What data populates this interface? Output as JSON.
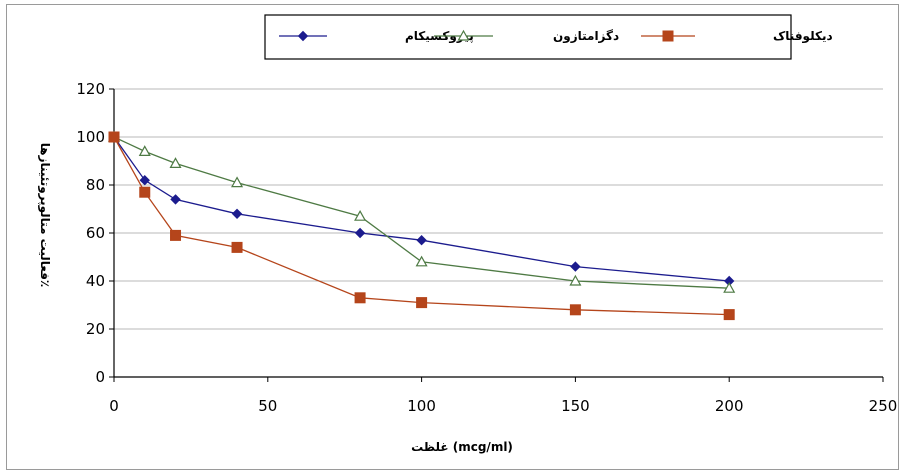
{
  "chart_data": {
    "type": "line",
    "title": "",
    "xlabel": "غلظت (mcg/ml)",
    "ylabel": "فعالیت متالوپروتئینازها٪",
    "xlim": [
      0,
      250
    ],
    "ylim": [
      0,
      120
    ],
    "xticks": [
      "0",
      "50",
      "100",
      "150",
      "200",
      "250"
    ],
    "yticks": [
      "0",
      "20",
      "40",
      "60",
      "80",
      "100",
      "120"
    ],
    "grid": true,
    "legend_position": "top",
    "series": [
      {
        "name": "پیروکسیکام",
        "color": "#1c1c8e",
        "marker": "diamond",
        "x": [
          0,
          10,
          20,
          40,
          80,
          100,
          150,
          200
        ],
        "y": [
          100,
          82,
          74,
          68,
          60,
          57,
          46,
          40
        ]
      },
      {
        "name": "دگزامتازون",
        "color": "#4e7a44",
        "marker": "triangle",
        "x": [
          0,
          10,
          20,
          40,
          80,
          100,
          150,
          200
        ],
        "y": [
          100,
          94,
          89,
          81,
          67,
          48,
          40,
          37
        ]
      },
      {
        "name": "دیکلوفناک",
        "color": "#b5451b",
        "marker": "square",
        "x": [
          0,
          10,
          20,
          40,
          80,
          100,
          150,
          200
        ],
        "y": [
          100,
          77,
          59,
          54,
          33,
          31,
          28,
          26
        ]
      }
    ]
  }
}
